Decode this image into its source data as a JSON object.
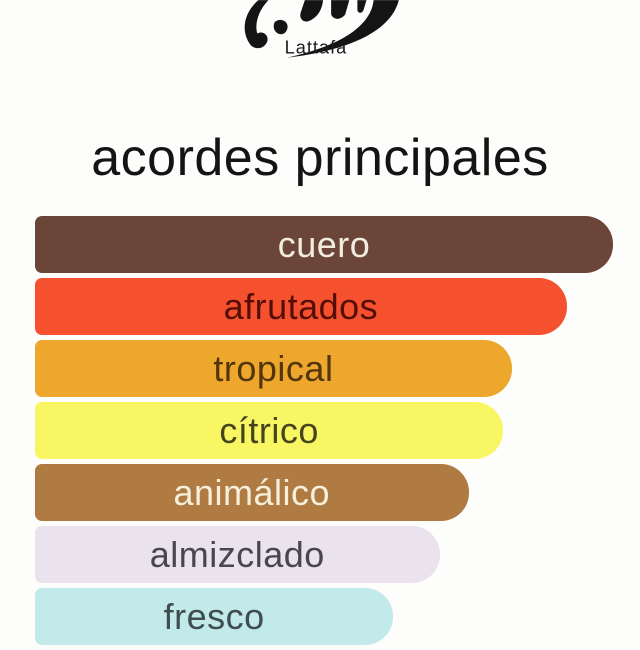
{
  "page": {
    "background": "#fdfdfc"
  },
  "logo": {
    "brand": "Lattafa"
  },
  "header": {
    "title": "acordes principales"
  },
  "chart_data": {
    "type": "bar",
    "orientation": "horizontal",
    "title": "acordes principales",
    "value_unit": "relative strength, % of widest bar (estimated from bar lengths)",
    "categories": [
      "cuero",
      "afrutados",
      "tropical",
      "cítrico",
      "animálico",
      "almizclado",
      "fresco"
    ],
    "values": [
      100,
      92,
      82.5,
      81,
      75,
      70,
      62
    ],
    "bars": [
      {
        "label": "cuero",
        "value_pct": 100,
        "bar_color": "#6B4538",
        "text_color": "#F3EDE0"
      },
      {
        "label": "afrutados",
        "value_pct": 92,
        "bar_color": "#F5512F",
        "text_color": "#540E05"
      },
      {
        "label": "tropical",
        "value_pct": 82.5,
        "bar_color": "#EDA72D",
        "text_color": "#53350B"
      },
      {
        "label": "cítrico",
        "value_pct": 81,
        "bar_color": "#F8F763",
        "text_color": "#45441E"
      },
      {
        "label": "animálico",
        "value_pct": 75,
        "bar_color": "#B07B43",
        "text_color": "#F6EFDC"
      },
      {
        "label": "almizclado",
        "value_pct": 70,
        "bar_color": "#EAE2ED",
        "text_color": "#47474C"
      },
      {
        "label": "fresco",
        "value_pct": 62,
        "bar_color": "#C2EAEA",
        "text_color": "#3E4D50"
      }
    ],
    "legend": "none",
    "grid": false,
    "notes": "Bars left-aligned, pill-rounded right ends; last bar (fresco) cropped by bottom edge of image"
  }
}
